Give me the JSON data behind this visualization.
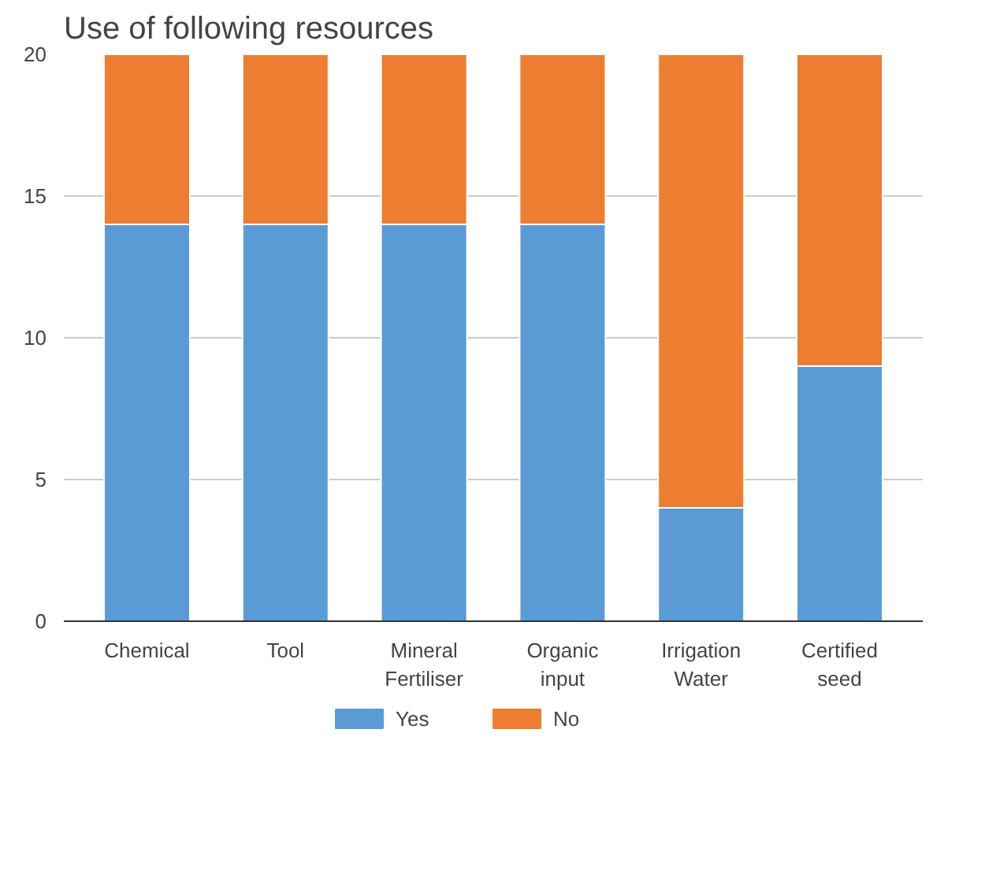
{
  "chart_data": {
    "type": "bar",
    "title": "Use of following resources",
    "stacked": true,
    "categories": [
      "Chemical",
      "Tool",
      "Mineral Fertiliser",
      "Organic input",
      "Irrigation Water",
      "Certified seed"
    ],
    "series": [
      {
        "name": "Yes",
        "color": "#5b9bd5",
        "values": [
          14,
          14,
          14,
          14,
          4,
          9
        ]
      },
      {
        "name": "No",
        "color": "#ed7d31",
        "values": [
          6,
          6,
          6,
          6,
          16,
          11
        ]
      }
    ],
    "ylim": [
      0,
      20
    ],
    "yticks": [
      0,
      5,
      10,
      15,
      20
    ],
    "grid": "y",
    "legend": "bottom"
  }
}
